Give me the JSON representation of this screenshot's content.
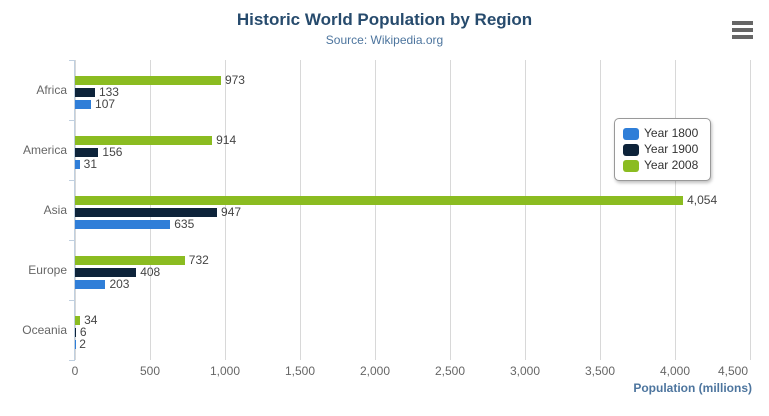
{
  "chart_data": {
    "type": "bar",
    "orientation": "horizontal",
    "title": "Historic World Population by Region",
    "subtitle": "Source: Wikipedia.org",
    "categories": [
      "Africa",
      "America",
      "Asia",
      "Europe",
      "Oceania"
    ],
    "series": [
      {
        "name": "Year 1800",
        "color": "#2f7ed8",
        "values": [
          107,
          31,
          635,
          203,
          2
        ]
      },
      {
        "name": "Year 1900",
        "color": "#0d233a",
        "values": [
          133,
          156,
          947,
          408,
          6
        ]
      },
      {
        "name": "Year 2008",
        "color": "#8bbc21",
        "values": [
          973,
          914,
          4054,
          732,
          34
        ]
      }
    ],
    "data_labels_shown": true,
    "xlabel": "Population (millions)",
    "ylabel": "",
    "xlim": [
      0,
      4500
    ],
    "tick_interval": 500,
    "tick_labels": [
      "0",
      "500",
      "1,000",
      "1,500",
      "2,000",
      "2,500",
      "3,000",
      "3,500",
      "4,000",
      "4,500"
    ],
    "grid": true,
    "legend_position": "right-middle"
  },
  "style_colors": {
    "title": "#274b6d",
    "subtitle": "#4d759e",
    "axis_title": "#4d759e",
    "axis_labels": "#666666",
    "data_labels": "#454545",
    "gridline": "#d8d8d8",
    "axis_line": "#c0d0e0",
    "legend_border": "#999999",
    "menu_icon": "#666666"
  },
  "context_menu": {
    "icon": "hamburger-icon",
    "tooltip": "Chart context menu"
  }
}
